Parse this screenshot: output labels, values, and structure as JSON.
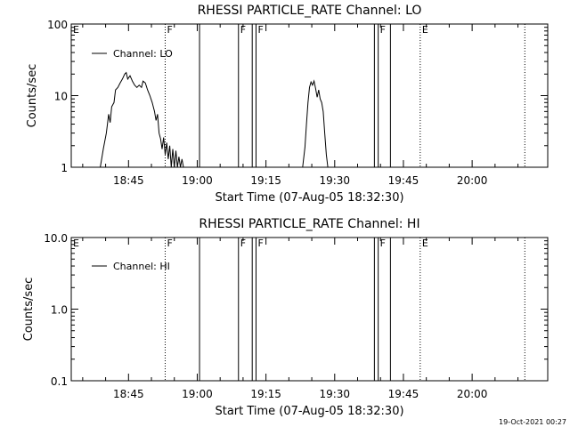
{
  "chart_data": [
    {
      "type": "line",
      "title": "RHESSI PARTICLE_RATE Channel: LO",
      "xlabel": "Start Time (07-Aug-05 18:32:30)",
      "ylabel": "Counts/sec",
      "yscale": "log",
      "xlim": [
        "18:32:30",
        "20:16:30"
      ],
      "ylim": [
        1,
        100
      ],
      "xticks": [
        "18:45",
        "19:00",
        "19:15",
        "19:30",
        "19:45",
        "20:00"
      ],
      "yticks": [
        "1",
        "10",
        "100"
      ],
      "legend": {
        "placement": "top-left",
        "entries": [
          "Channel: LO"
        ]
      },
      "flags": [
        {
          "label": "E",
          "time": "18:32:30",
          "style": "none"
        },
        {
          "label": "F",
          "time": "18:53:00",
          "style": "dotted"
        },
        {
          "label": "",
          "time": "19:00:30",
          "style": "solid"
        },
        {
          "label": "F",
          "time": "19:09:00",
          "style": "solid"
        },
        {
          "label": "",
          "time": "19:12:00",
          "style": "solid"
        },
        {
          "label": "F",
          "time": "19:12:50",
          "style": "solid"
        },
        {
          "label": "",
          "time": "19:38:40",
          "style": "solid"
        },
        {
          "label": "F",
          "time": "19:39:30",
          "style": "solid"
        },
        {
          "label": "",
          "time": "19:42:10",
          "style": "solid"
        },
        {
          "label": "E",
          "time": "19:48:40",
          "style": "dotted"
        },
        {
          "label": "",
          "time": "20:11:30",
          "style": "dotted"
        }
      ],
      "series": [
        {
          "segments": [
            [
              [
                "18:38:50",
                1.0
              ],
              [
                "18:39:30",
                1.8
              ],
              [
                "18:40:10",
                3.0
              ],
              [
                "18:40:40",
                5.5
              ],
              [
                "18:41:00",
                4.2
              ],
              [
                "18:41:20",
                7.0
              ],
              [
                "18:41:50",
                8.0
              ],
              [
                "18:42:10",
                12.0
              ],
              [
                "18:42:40",
                13.0
              ],
              [
                "18:43:10",
                15.0
              ],
              [
                "18:43:40",
                17.0
              ],
              [
                "18:44:10",
                20.0
              ],
              [
                "18:44:30",
                21.0
              ],
              [
                "18:44:50",
                17.0
              ],
              [
                "18:45:20",
                19.0
              ],
              [
                "18:45:50",
                16.0
              ],
              [
                "18:46:20",
                14.0
              ],
              [
                "18:46:50",
                13.0
              ],
              [
                "18:47:20",
                14.0
              ],
              [
                "18:47:50",
                13.0
              ],
              [
                "18:48:10",
                16.0
              ],
              [
                "18:48:40",
                15.0
              ],
              [
                "18:49:10",
                12.0
              ],
              [
                "18:49:40",
                10.0
              ],
              [
                "18:50:10",
                8.0
              ],
              [
                "18:50:40",
                6.0
              ],
              [
                "18:51:00",
                4.5
              ],
              [
                "18:51:20",
                5.5
              ],
              [
                "18:51:40",
                3.0
              ],
              [
                "18:52:00",
                2.5
              ],
              [
                "18:52:20",
                1.8
              ],
              [
                "18:52:40",
                2.6
              ],
              [
                "18:53:00",
                1.5
              ],
              [
                "18:53:20",
                2.2
              ],
              [
                "18:53:40",
                1.3
              ],
              [
                "18:54:00",
                2.0
              ],
              [
                "18:54:20",
                1.0
              ],
              [
                "18:54:40",
                1.8
              ],
              [
                "18:55:00",
                1.0
              ],
              [
                "18:55:20",
                1.7
              ],
              [
                "18:55:40",
                1.0
              ],
              [
                "18:56:00",
                1.4
              ],
              [
                "18:56:20",
                1.0
              ],
              [
                "18:56:40",
                1.3
              ],
              [
                "18:57:00",
                1.0
              ]
            ],
            [
              [
                "19:23:00",
                1.0
              ],
              [
                "19:23:30",
                1.9
              ],
              [
                "19:23:50",
                4.0
              ],
              [
                "19:24:10",
                8.0
              ],
              [
                "19:24:30",
                13.0
              ],
              [
                "19:24:50",
                15.5
              ],
              [
                "19:25:10",
                14.0
              ],
              [
                "19:25:30",
                16.0
              ],
              [
                "19:25:50",
                12.5
              ],
              [
                "19:26:10",
                9.5
              ],
              [
                "19:26:30",
                12.0
              ],
              [
                "19:26:50",
                9.0
              ],
              [
                "19:27:10",
                8.0
              ],
              [
                "19:27:30",
                6.0
              ],
              [
                "19:27:50",
                3.0
              ],
              [
                "19:28:10",
                1.5
              ],
              [
                "19:28:30",
                1.0
              ]
            ]
          ]
        }
      ]
    },
    {
      "type": "line",
      "title": "RHESSI PARTICLE_RATE Channel: HI",
      "xlabel": "Start Time (07-Aug-05 18:32:30)",
      "ylabel": "Counts/sec",
      "yscale": "log",
      "xlim": [
        "18:32:30",
        "20:16:30"
      ],
      "ylim": [
        0.1,
        10
      ],
      "xticks": [
        "18:45",
        "19:00",
        "19:15",
        "19:30",
        "19:45",
        "20:00"
      ],
      "yticks": [
        "0.1",
        "1.0",
        "10.0"
      ],
      "legend": {
        "placement": "top-left",
        "entries": [
          "Channel: HI"
        ]
      },
      "flags": [
        {
          "label": "E",
          "time": "18:32:30",
          "style": "none"
        },
        {
          "label": "F",
          "time": "18:53:00",
          "style": "dotted"
        },
        {
          "label": "",
          "time": "19:00:30",
          "style": "solid"
        },
        {
          "label": "F",
          "time": "19:09:00",
          "style": "solid"
        },
        {
          "label": "",
          "time": "19:12:00",
          "style": "solid"
        },
        {
          "label": "F",
          "time": "19:12:50",
          "style": "solid"
        },
        {
          "label": "",
          "time": "19:38:40",
          "style": "solid"
        },
        {
          "label": "F",
          "time": "19:39:30",
          "style": "solid"
        },
        {
          "label": "",
          "time": "19:42:10",
          "style": "solid"
        },
        {
          "label": "E",
          "time": "19:48:40",
          "style": "dotted"
        },
        {
          "label": "",
          "time": "20:11:30",
          "style": "dotted"
        }
      ],
      "series": [
        {
          "segments": []
        }
      ]
    }
  ],
  "footer": {
    "timestamp": "19-Oct-2021 00:27"
  }
}
